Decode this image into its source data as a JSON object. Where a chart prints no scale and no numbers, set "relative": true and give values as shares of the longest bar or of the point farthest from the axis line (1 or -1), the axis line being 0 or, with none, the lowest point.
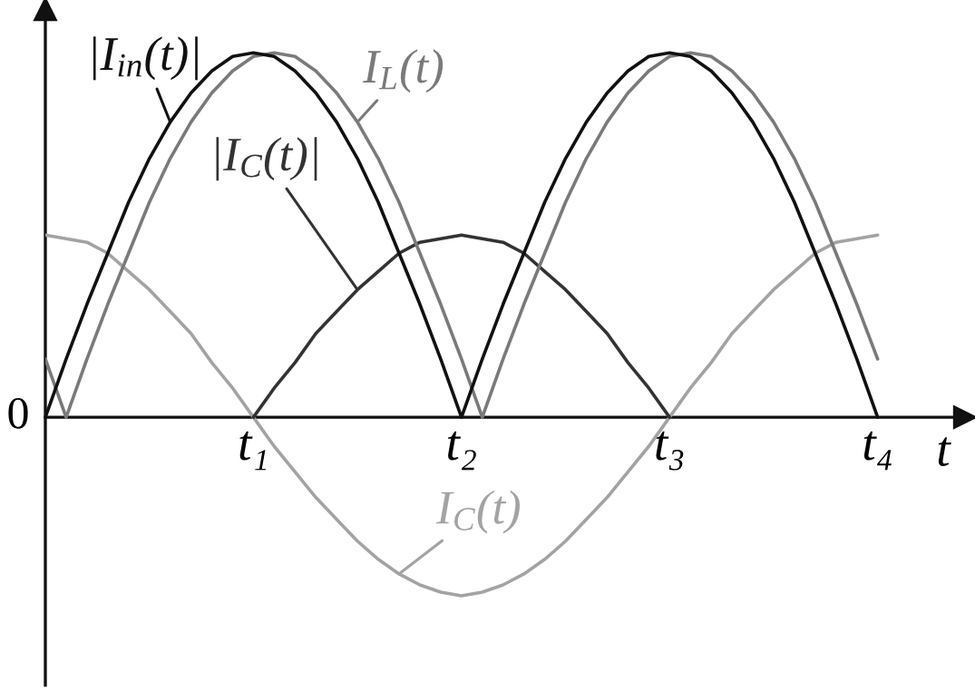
{
  "chart_data": {
    "type": "line",
    "relative": true,
    "tick_labels": "x",
    "xlabel": "t",
    "categories": [
      null,
      null,
      null,
      null,
      null,
      null,
      null,
      null,
      null,
      null,
      "t₁",
      null,
      null,
      null,
      null,
      null,
      null,
      null,
      null,
      null,
      "t₂",
      null,
      null,
      null,
      null,
      null,
      null,
      null,
      null,
      null,
      "t₃",
      null,
      null,
      null,
      null,
      null,
      null,
      null,
      null,
      null,
      "t₄"
    ],
    "annotations": [
      "0"
    ],
    "series": [
      {
        "name": "|I$_{in}$(t)|",
        "color": "#111111",
        "values": [
          0,
          0.16,
          0.31,
          0.45,
          0.59,
          0.71,
          0.81,
          0.89,
          0.95,
          0.99,
          1,
          0.99,
          0.95,
          0.89,
          0.81,
          0.71,
          0.59,
          0.45,
          0.31,
          0.16,
          0,
          0.16,
          0.31,
          0.45,
          0.59,
          0.71,
          0.81,
          0.89,
          0.95,
          0.99,
          1,
          0.99,
          0.95,
          0.89,
          0.81,
          0.71,
          0.59,
          0.45,
          0.31,
          0.16,
          0
        ]
      },
      {
        "name": "I$_{L}$(t)",
        "color": "#7a7a7a",
        "values": [
          0.16,
          0,
          0.16,
          0.31,
          0.45,
          0.59,
          0.71,
          0.81,
          0.89,
          0.95,
          0.99,
          1,
          0.99,
          0.95,
          0.89,
          0.81,
          0.71,
          0.59,
          0.45,
          0.31,
          0.16,
          0,
          0.16,
          0.31,
          0.45,
          0.59,
          0.71,
          0.81,
          0.89,
          0.95,
          0.99,
          1,
          0.99,
          0.95,
          0.89,
          0.81,
          0.71,
          0.59,
          0.45,
          0.31,
          0.16
        ]
      },
      {
        "name": "|I$_{C}$(t)|",
        "color": "#333333",
        "values": [
          null,
          null,
          null,
          null,
          null,
          null,
          null,
          null,
          null,
          null,
          0,
          0.08,
          0.15,
          0.23,
          0.29,
          0.35,
          0.4,
          0.45,
          0.48,
          0.49,
          0.5,
          0.49,
          0.48,
          0.45,
          0.4,
          0.35,
          0.29,
          0.23,
          0.15,
          0.08,
          0,
          null,
          null,
          null,
          null,
          null,
          null,
          null,
          null,
          null,
          null
        ]
      },
      {
        "name": "I$_{C}$(t)",
        "color": "#a3a3a3",
        "values": [
          0.5,
          0.49,
          0.48,
          0.45,
          0.4,
          0.35,
          0.29,
          0.23,
          0.15,
          0.08,
          0,
          -0.08,
          -0.15,
          -0.22,
          -0.28,
          -0.34,
          -0.39,
          -0.43,
          -0.46,
          -0.48,
          -0.49,
          -0.48,
          -0.46,
          -0.43,
          -0.39,
          -0.34,
          -0.28,
          -0.22,
          -0.15,
          -0.08,
          0,
          0.08,
          0.15,
          0.23,
          0.29,
          0.35,
          0.4,
          0.45,
          0.48,
          0.49,
          0.5
        ]
      }
    ]
  }
}
